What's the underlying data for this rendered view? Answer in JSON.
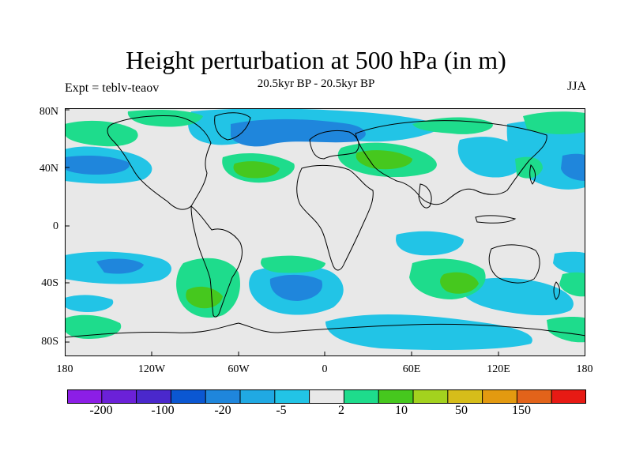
{
  "title": "Height perturbation at 500 hPa (in m)",
  "subtitle": "20.5kyr BP - 20.5kyr BP",
  "left_label": "Expt = teblv-teaov",
  "right_label": "JJA",
  "lat_labels": [
    "80N",
    "40N",
    "0",
    "40S",
    "80S"
  ],
  "lon_labels": [
    "180",
    "120W",
    "60W",
    "0",
    "60E",
    "120E",
    "180"
  ],
  "colorbar": {
    "colors": [
      "#8c1ee6",
      "#6b21d8",
      "#4a28cc",
      "#0b57d2",
      "#1f86dc",
      "#20a9e3",
      "#22c4e6",
      "#e8e8e8",
      "#1edc8c",
      "#46c81e",
      "#a3d21e",
      "#d6bd1a",
      "#e39a10",
      "#e2631a",
      "#e71a14"
    ],
    "labels": [
      "-200",
      "-100",
      "-20",
      "-5",
      "2",
      "10",
      "50",
      "150"
    ]
  },
  "colors": {
    "neutral": "#e8e8e8",
    "cyan": "#22c4e6",
    "blue": "#1f86dc",
    "green_light": "#1edc8c",
    "green": "#46c81e",
    "coast": "#000000"
  }
}
